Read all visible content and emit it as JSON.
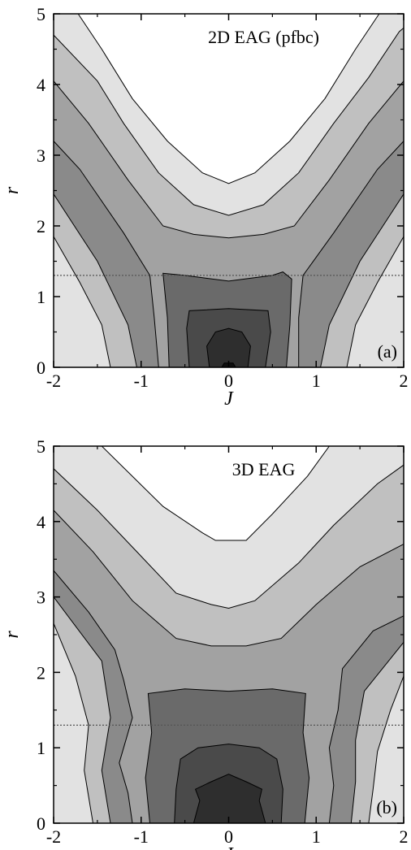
{
  "chart_data": [
    {
      "type": "contour",
      "title": "2D EAG (pfbc)",
      "panel_label": "(a)",
      "xlabel": "J",
      "ylabel": "r",
      "xlim": [
        -2,
        2
      ],
      "ylim": [
        0,
        5
      ],
      "x_ticks": [
        "-2",
        "-1",
        "0",
        "1",
        "2"
      ],
      "y_ticks": [
        "0",
        "1",
        "2",
        "3",
        "4",
        "5"
      ],
      "reference_line_r": 1.3,
      "contour_boundaries": [
        {
          "level": 1,
          "color": "#e2e2e2",
          "points": [
            [
              -1.72,
              5
            ],
            [
              -1.45,
              4.5
            ],
            [
              -1.1,
              3.8
            ],
            [
              -0.7,
              3.2
            ],
            [
              -0.3,
              2.75
            ],
            [
              0,
              2.6
            ],
            [
              0.3,
              2.75
            ],
            [
              0.7,
              3.2
            ],
            [
              1.1,
              3.8
            ],
            [
              1.45,
              4.5
            ],
            [
              1.72,
              5
            ]
          ]
        },
        {
          "level": 2,
          "color": "#c0c0c0",
          "points": [
            [
              -2,
              4.7
            ],
            [
              -1.5,
              4.05
            ],
            [
              -1.2,
              3.45
            ],
            [
              -0.8,
              2.75
            ],
            [
              -0.4,
              2.3
            ],
            [
              0,
              2.15
            ],
            [
              0.4,
              2.3
            ],
            [
              0.8,
              2.75
            ],
            [
              1.2,
              3.45
            ],
            [
              1.6,
              4.1
            ],
            [
              1.95,
              4.75
            ],
            [
              2,
              4.8
            ]
          ]
        },
        {
          "level": 3,
          "color": "#a2a2a2",
          "points": [
            [
              -2,
              4.05
            ],
            [
              -1.6,
              3.45
            ],
            [
              -1.15,
              2.65
            ],
            [
              -0.75,
              2.0
            ],
            [
              -0.4,
              1.88
            ],
            [
              0,
              1.83
            ],
            [
              0.4,
              1.88
            ],
            [
              0.75,
              2.0
            ],
            [
              1.15,
              2.65
            ],
            [
              1.6,
              3.45
            ],
            [
              2,
              4.05
            ]
          ]
        },
        {
          "level": 4,
          "color": "#8a8a8a",
          "points": [
            [
              -2,
              3.2
            ],
            [
              -1.7,
              2.8
            ],
            [
              -1.2,
              1.9
            ],
            [
              -0.9,
              1.3
            ],
            [
              -0.85,
              0.7
            ],
            [
              -0.8,
              0
            ],
            [
              0.8,
              0
            ],
            [
              0.8,
              0.7
            ],
            [
              0.85,
              1.3
            ],
            [
              1.2,
              1.9
            ],
            [
              1.7,
              2.8
            ],
            [
              2,
              3.2
            ]
          ]
        },
        {
          "level": 5,
          "color": "#6a6a6a",
          "points": [
            [
              -0.68,
              0
            ],
            [
              -0.7,
              0.7
            ],
            [
              -0.75,
              1.33
            ],
            [
              -0.5,
              1.3
            ],
            [
              0,
              1.22
            ],
            [
              0.5,
              1.3
            ],
            [
              0.62,
              1.35
            ],
            [
              0.72,
              1.25
            ],
            [
              0.7,
              0.6
            ],
            [
              0.66,
              0
            ]
          ]
        },
        {
          "level": 6,
          "color": "#4a4a4a",
          "points": [
            [
              -0.45,
              0
            ],
            [
              -0.48,
              0.55
            ],
            [
              -0.45,
              0.8
            ],
            [
              0,
              0.83
            ],
            [
              0.45,
              0.8
            ],
            [
              0.48,
              0.5
            ],
            [
              0.42,
              0
            ]
          ]
        },
        {
          "level": 7,
          "color": "#2e2e2e",
          "points": [
            [
              -0.22,
              0
            ],
            [
              -0.25,
              0.3
            ],
            [
              -0.15,
              0.5
            ],
            [
              0,
              0.55
            ],
            [
              0.15,
              0.5
            ],
            [
              0.25,
              0.3
            ],
            [
              0.22,
              0
            ]
          ]
        },
        {
          "level": 8,
          "color": "#0e0e0e",
          "points": [
            [
              -0.08,
              0
            ],
            [
              -0.05,
              0.06
            ],
            [
              0.05,
              0.06
            ],
            [
              0.08,
              0
            ]
          ]
        }
      ],
      "outer_contours": [
        {
          "color": "#e2e2e2",
          "side": "left",
          "points": [
            [
              -2,
              1.85
            ],
            [
              -1.7,
              1.2
            ],
            [
              -1.45,
              0.6
            ],
            [
              -1.35,
              0
            ]
          ]
        },
        {
          "color": "#e2e2e2",
          "side": "right",
          "points": [
            [
              2,
              1.85
            ],
            [
              1.7,
              1.2
            ],
            [
              1.45,
              0.6
            ],
            [
              1.35,
              0
            ]
          ]
        },
        {
          "color": "#c0c0c0",
          "side": "left",
          "points": [
            [
              -2,
              2.45
            ],
            [
              -1.5,
              1.5
            ],
            [
              -1.15,
              0.6
            ],
            [
              -1.05,
              0
            ]
          ]
        },
        {
          "color": "#c0c0c0",
          "side": "right",
          "points": [
            [
              2,
              2.45
            ],
            [
              1.5,
              1.5
            ],
            [
              1.15,
              0.6
            ],
            [
              1.05,
              0
            ]
          ]
        }
      ]
    },
    {
      "type": "contour",
      "title": "3D EAG",
      "panel_label": "(b)",
      "xlabel": "J",
      "ylabel": "r",
      "xlim": [
        -2,
        2
      ],
      "ylim": [
        0,
        5
      ],
      "x_ticks": [
        "-2",
        "-1",
        "0",
        "1",
        "2"
      ],
      "y_ticks": [
        "0",
        "1",
        "2",
        "3",
        "4",
        "5"
      ],
      "reference_line_r": 1.3,
      "contour_boundaries": [
        {
          "level": 1,
          "color": "#e2e2e2",
          "points": [
            [
              -1.45,
              5
            ],
            [
              -1.1,
              4.6
            ],
            [
              -0.75,
              4.2
            ],
            [
              -0.3,
              3.85
            ],
            [
              -0.15,
              3.75
            ],
            [
              0.2,
              3.75
            ],
            [
              0.5,
              4.1
            ],
            [
              0.9,
              4.6
            ],
            [
              1.15,
              5
            ]
          ]
        },
        {
          "level": 2,
          "color": "#c0c0c0",
          "points": [
            [
              -2,
              4.7
            ],
            [
              -1.5,
              4.15
            ],
            [
              -1.05,
              3.6
            ],
            [
              -0.6,
              3.05
            ],
            [
              -0.2,
              2.9
            ],
            [
              0,
              2.85
            ],
            [
              0.3,
              2.95
            ],
            [
              0.8,
              3.45
            ],
            [
              1.2,
              3.95
            ],
            [
              1.7,
              4.5
            ],
            [
              2,
              4.75
            ]
          ]
        },
        {
          "level": 3,
          "color": "#a2a2a2",
          "points": [
            [
              -2,
              4.15
            ],
            [
              -1.55,
              3.6
            ],
            [
              -1.1,
              2.95
            ],
            [
              -0.6,
              2.45
            ],
            [
              -0.2,
              2.35
            ],
            [
              0.2,
              2.35
            ],
            [
              0.6,
              2.45
            ],
            [
              1.0,
              2.9
            ],
            [
              1.5,
              3.4
            ],
            [
              2,
              3.7
            ]
          ]
        },
        {
          "level": 4,
          "color": "#8a8a8a",
          "points": [
            [
              -2,
              3.35
            ],
            [
              -1.6,
              2.8
            ],
            [
              -1.3,
              2.3
            ],
            [
              -1.2,
              1.9
            ],
            [
              -1.1,
              1.4
            ],
            [
              -1.25,
              0.8
            ],
            [
              -1.15,
              0.4
            ],
            [
              -1.1,
              0
            ],
            [
              1.15,
              0
            ],
            [
              1.2,
              0.5
            ],
            [
              1.15,
              1.0
            ],
            [
              1.25,
              1.5
            ],
            [
              1.3,
              2.05
            ],
            [
              1.65,
              2.55
            ],
            [
              2,
              2.75
            ]
          ]
        },
        {
          "level": 5,
          "color": "#6a6a6a",
          "points": [
            [
              -0.9,
              0
            ],
            [
              -0.95,
              0.6
            ],
            [
              -0.88,
              1.2
            ],
            [
              -0.92,
              1.72
            ],
            [
              -0.5,
              1.78
            ],
            [
              0,
              1.75
            ],
            [
              0.5,
              1.78
            ],
            [
              0.88,
              1.72
            ],
            [
              0.85,
              1.2
            ],
            [
              0.92,
              0.6
            ],
            [
              0.87,
              0
            ]
          ]
        },
        {
          "level": 6,
          "color": "#4a4a4a",
          "points": [
            [
              -0.62,
              0
            ],
            [
              -0.6,
              0.45
            ],
            [
              -0.55,
              0.85
            ],
            [
              -0.35,
              1.0
            ],
            [
              0,
              1.05
            ],
            [
              0.35,
              1.0
            ],
            [
              0.55,
              0.85
            ],
            [
              0.62,
              0.45
            ],
            [
              0.6,
              0
            ]
          ]
        },
        {
          "level": 7,
          "color": "#2e2e2e",
          "points": [
            [
              -0.4,
              0
            ],
            [
              -0.33,
              0.3
            ],
            [
              -0.38,
              0.45
            ],
            [
              -0.2,
              0.55
            ],
            [
              0,
              0.65
            ],
            [
              0.2,
              0.55
            ],
            [
              0.38,
              0.45
            ],
            [
              0.35,
              0.3
            ],
            [
              0.42,
              0
            ]
          ]
        }
      ],
      "outer_contours": [
        {
          "color": "#e2e2e2",
          "side": "left",
          "points": [
            [
              -2,
              2.65
            ],
            [
              -1.75,
              1.95
            ],
            [
              -1.6,
              1.3
            ],
            [
              -1.65,
              0.7
            ],
            [
              -1.55,
              0
            ]
          ]
        },
        {
          "color": "#e2e2e2",
          "side": "right",
          "points": [
            [
              2,
              1.95
            ],
            [
              1.85,
              1.5
            ],
            [
              1.7,
              0.95
            ],
            [
              1.65,
              0.45
            ],
            [
              1.6,
              0
            ]
          ]
        },
        {
          "color": "#c0c0c0",
          "side": "left",
          "points": [
            [
              -2,
              3.0
            ],
            [
              -1.45,
              2.15
            ],
            [
              -1.35,
              1.4
            ],
            [
              -1.45,
              0.7
            ],
            [
              -1.35,
              0
            ]
          ]
        },
        {
          "color": "#c0c0c0",
          "side": "right",
          "points": [
            [
              2,
              2.4
            ],
            [
              1.55,
              1.75
            ],
            [
              1.45,
              1.1
            ],
            [
              1.45,
              0.55
            ],
            [
              1.4,
              0
            ]
          ]
        }
      ]
    }
  ]
}
